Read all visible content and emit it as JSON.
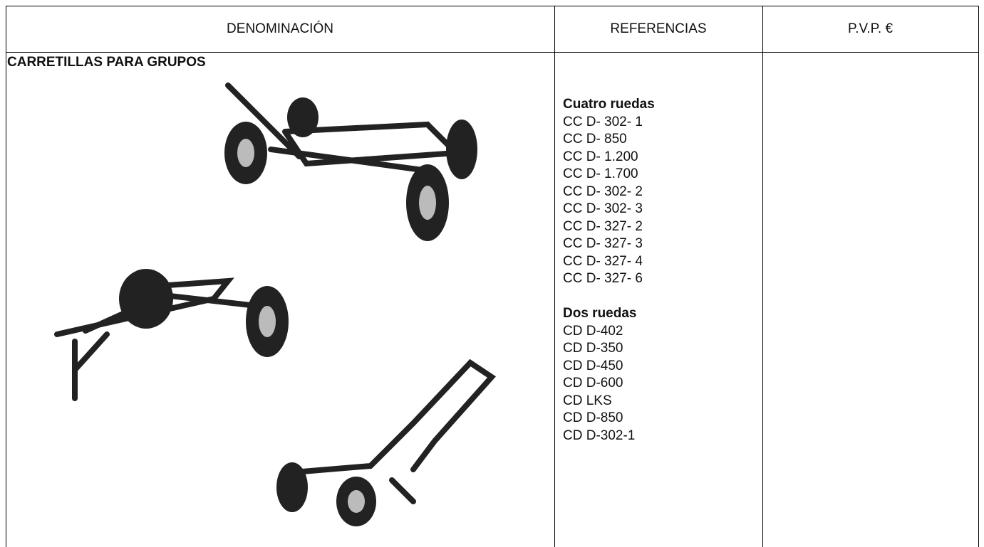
{
  "table": {
    "header": [
      "DENOMINACIÓN",
      "REFERENCIAS",
      "P.V.P. €"
    ],
    "section_title": "CARRETILLAS PARA GRUPOS",
    "groups": [
      {
        "heading": "Cuatro ruedas",
        "items": [
          "CC D- 302- 1",
          "CC D- 850",
          "CC D- 1.200",
          "CC D- 1.700",
          "CC D- 302- 2",
          "CC D- 302- 3",
          "CC D- 327- 2",
          "CC D- 327- 3",
          "CC D- 327- 4",
          "CC D- 327- 6"
        ]
      },
      {
        "heading": "Dos ruedas",
        "items": [
          "CD D-402",
          "CD D-350",
          "CD D-450",
          "CD D-600",
          "CD LKS",
          "CD D-850",
          "CD D-302-1"
        ]
      }
    ]
  }
}
